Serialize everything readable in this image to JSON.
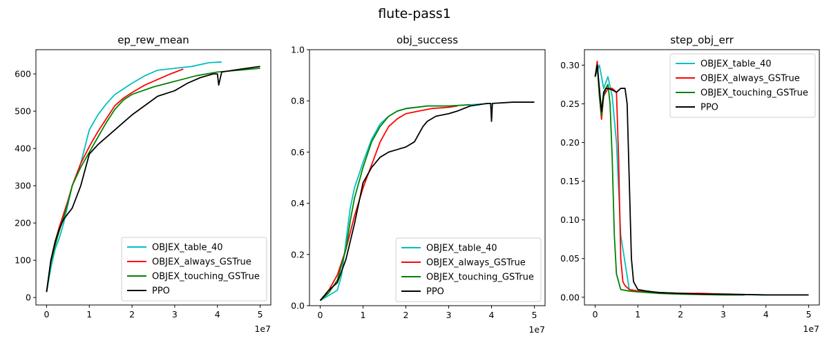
{
  "figure": {
    "suptitle": "flute-pass1"
  },
  "chart_data": [
    {
      "type": "line",
      "title": "ep_rew_mean",
      "xlabel": "",
      "ylabel": "",
      "x_offset_label": "1e7",
      "xlim": [
        -0.25,
        5.25
      ],
      "ylim": [
        -20,
        665
      ],
      "xticks": [
        0,
        1,
        2,
        3,
        4,
        5
      ],
      "yticks": [
        0,
        100,
        200,
        300,
        400,
        500,
        600
      ],
      "legend_position": "lower-right",
      "grid": false,
      "series": [
        {
          "name": "OBJEX_table_40",
          "color": "#00bfbf",
          "x": [
            0,
            0.1,
            0.2,
            0.3,
            0.4,
            0.5,
            0.6,
            0.8,
            1.0,
            1.2,
            1.4,
            1.6,
            1.8,
            2.0,
            2.3,
            2.6,
            3.0,
            3.4,
            3.8,
            4.1
          ],
          "y": [
            15,
            80,
            130,
            160,
            200,
            250,
            300,
            360,
            450,
            490,
            520,
            545,
            560,
            575,
            595,
            610,
            615,
            620,
            630,
            632
          ]
        },
        {
          "name": "OBJEX_always_GSTrue",
          "color": "#ff0000",
          "x": [
            0,
            0.1,
            0.2,
            0.3,
            0.4,
            0.5,
            0.6,
            0.8,
            1.0,
            1.2,
            1.4,
            1.6,
            1.8,
            2.0,
            2.3,
            2.6,
            2.9,
            3.2
          ],
          "y": [
            15,
            100,
            150,
            190,
            225,
            260,
            300,
            360,
            405,
            445,
            480,
            515,
            535,
            550,
            570,
            585,
            600,
            613
          ]
        },
        {
          "name": "OBJEX_touching_GSTrue",
          "color": "#008000",
          "x": [
            0,
            0.1,
            0.2,
            0.3,
            0.4,
            0.5,
            0.6,
            0.8,
            1.0,
            1.2,
            1.4,
            1.6,
            1.8,
            2.0,
            2.5,
            3.0,
            3.5,
            4.0,
            4.5,
            5.0
          ],
          "y": [
            15,
            95,
            140,
            180,
            215,
            255,
            300,
            350,
            390,
            430,
            470,
            505,
            530,
            545,
            565,
            580,
            595,
            605,
            610,
            615
          ]
        },
        {
          "name": "PPO",
          "color": "#000000",
          "x": [
            0,
            0.1,
            0.2,
            0.3,
            0.4,
            0.5,
            0.6,
            0.8,
            1.0,
            1.2,
            1.5,
            1.8,
            2.0,
            2.3,
            2.6,
            3.0,
            3.3,
            3.6,
            3.9,
            4.0,
            4.03,
            4.1,
            4.5,
            5.0
          ],
          "y": [
            15,
            100,
            150,
            185,
            210,
            225,
            240,
            300,
            385,
            410,
            440,
            470,
            490,
            515,
            540,
            555,
            575,
            590,
            600,
            600,
            570,
            605,
            612,
            620
          ]
        }
      ]
    },
    {
      "type": "line",
      "title": "obj_success",
      "xlabel": "",
      "ylabel": "",
      "x_offset_label": "1e7",
      "xlim": [
        -0.25,
        5.25
      ],
      "ylim": [
        0.0,
        1.0
      ],
      "xticks": [
        0,
        1,
        2,
        3,
        4,
        5
      ],
      "yticks": [
        0.0,
        0.2,
        0.4,
        0.6,
        0.8,
        1.0
      ],
      "legend_position": "lower-right",
      "grid": false,
      "series": [
        {
          "name": "OBJEX_table_40",
          "color": "#00bfbf",
          "x": [
            0,
            0.2,
            0.4,
            0.5,
            0.6,
            0.7,
            0.8,
            1.0,
            1.2,
            1.4,
            1.6,
            1.8,
            2.0,
            2.5,
            3.0,
            3.5,
            4.0
          ],
          "y": [
            0.02,
            0.04,
            0.06,
            0.12,
            0.25,
            0.38,
            0.46,
            0.56,
            0.65,
            0.71,
            0.74,
            0.76,
            0.77,
            0.78,
            0.78,
            0.785,
            0.79
          ]
        },
        {
          "name": "OBJEX_always_GSTrue",
          "color": "#ff0000",
          "x": [
            0,
            0.2,
            0.4,
            0.6,
            0.8,
            1.0,
            1.2,
            1.4,
            1.6,
            1.8,
            2.0,
            2.3,
            2.6,
            3.0,
            3.2
          ],
          "y": [
            0.02,
            0.06,
            0.12,
            0.22,
            0.35,
            0.46,
            0.55,
            0.64,
            0.7,
            0.73,
            0.75,
            0.76,
            0.77,
            0.775,
            0.78
          ]
        },
        {
          "name": "OBJEX_touching_GSTrue",
          "color": "#008000",
          "x": [
            0,
            0.2,
            0.4,
            0.6,
            0.7,
            0.8,
            1.0,
            1.2,
            1.4,
            1.6,
            1.8,
            2.0,
            2.5,
            3.0,
            3.5
          ],
          "y": [
            0.02,
            0.05,
            0.1,
            0.22,
            0.33,
            0.42,
            0.54,
            0.64,
            0.7,
            0.74,
            0.76,
            0.77,
            0.78,
            0.78,
            0.785
          ]
        },
        {
          "name": "PPO",
          "color": "#000000",
          "x": [
            0,
            0.2,
            0.4,
            0.6,
            0.8,
            1.0,
            1.2,
            1.4,
            1.6,
            1.8,
            2.0,
            2.2,
            2.4,
            2.5,
            2.7,
            3.0,
            3.2,
            3.5,
            3.9,
            3.98,
            4.0,
            4.02,
            4.5,
            5.0
          ],
          "y": [
            0.02,
            0.06,
            0.09,
            0.18,
            0.32,
            0.48,
            0.54,
            0.58,
            0.6,
            0.61,
            0.62,
            0.64,
            0.7,
            0.72,
            0.74,
            0.75,
            0.76,
            0.78,
            0.79,
            0.79,
            0.72,
            0.79,
            0.795,
            0.795
          ]
        }
      ]
    },
    {
      "type": "line",
      "title": "step_obj_err",
      "xlabel": "",
      "ylabel": "",
      "x_offset_label": "1e7",
      "xlim": [
        -0.25,
        5.25
      ],
      "ylim": [
        -0.01,
        0.32
      ],
      "xticks": [
        0,
        1,
        2,
        3,
        4,
        5
      ],
      "yticks": [
        0.0,
        0.05,
        0.1,
        0.15,
        0.2,
        0.25,
        0.3
      ],
      "legend_position": "top-right",
      "grid": false,
      "series": [
        {
          "name": "OBJEX_table_40",
          "color": "#00bfbf",
          "x": [
            0,
            0.1,
            0.2,
            0.3,
            0.4,
            0.5,
            0.6,
            0.8,
            1.0,
            1.2,
            1.6,
            2.0,
            3.0,
            4.0
          ],
          "y": [
            0.285,
            0.3,
            0.27,
            0.285,
            0.26,
            0.2,
            0.08,
            0.01,
            0.008,
            0.007,
            0.006,
            0.005,
            0.004,
            0.003
          ]
        },
        {
          "name": "OBJEX_always_GSTrue",
          "color": "#ff0000",
          "x": [
            0,
            0.05,
            0.1,
            0.15,
            0.2,
            0.25,
            0.3,
            0.4,
            0.5,
            0.55,
            0.6,
            0.65,
            0.7,
            0.8,
            1.0,
            1.5,
            2.0,
            2.5,
            3.0,
            3.2
          ],
          "y": [
            0.285,
            0.305,
            0.26,
            0.23,
            0.26,
            0.265,
            0.27,
            0.27,
            0.265,
            0.18,
            0.05,
            0.02,
            0.015,
            0.01,
            0.008,
            0.006,
            0.005,
            0.005,
            0.004,
            0.004
          ]
        },
        {
          "name": "OBJEX_touching_GSTrue",
          "color": "#008000",
          "x": [
            0,
            0.05,
            0.1,
            0.15,
            0.2,
            0.25,
            0.3,
            0.35,
            0.4,
            0.45,
            0.5,
            0.6,
            0.8,
            1.0,
            1.5,
            2.0,
            3.0,
            3.5
          ],
          "y": [
            0.285,
            0.3,
            0.26,
            0.235,
            0.26,
            0.27,
            0.275,
            0.25,
            0.18,
            0.08,
            0.03,
            0.01,
            0.008,
            0.007,
            0.005,
            0.004,
            0.003,
            0.003
          ]
        },
        {
          "name": "PPO",
          "color": "#000000",
          "x": [
            0,
            0.05,
            0.1,
            0.15,
            0.2,
            0.25,
            0.3,
            0.4,
            0.5,
            0.6,
            0.7,
            0.75,
            0.8,
            0.85,
            0.9,
            1.0,
            1.2,
            1.5,
            2.0,
            2.5,
            3.0,
            4.0,
            5.0
          ],
          "y": [
            0.285,
            0.3,
            0.27,
            0.24,
            0.265,
            0.27,
            0.27,
            0.268,
            0.265,
            0.27,
            0.27,
            0.25,
            0.15,
            0.05,
            0.02,
            0.01,
            0.008,
            0.006,
            0.005,
            0.004,
            0.004,
            0.003,
            0.003
          ]
        }
      ]
    }
  ]
}
